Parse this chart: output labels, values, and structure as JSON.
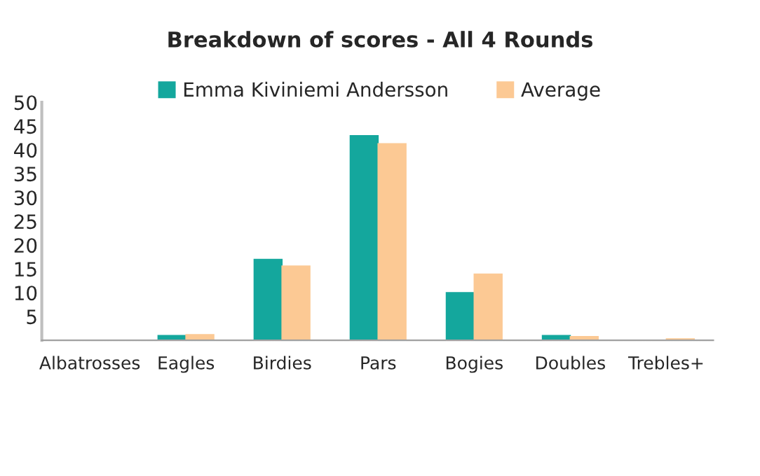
{
  "chart_data": {
    "type": "bar",
    "title": "Breakdown of scores - All 4 Rounds",
    "categories": [
      "Albatrosses",
      "Eagles",
      "Birdies",
      "Pars",
      "Bogies",
      "Doubles",
      "Trebles+"
    ],
    "series": [
      {
        "name": "Emma Kiviniemi Andersson",
        "color": "#14a79d",
        "values": [
          0,
          1,
          17,
          43,
          10,
          1,
          0
        ]
      },
      {
        "name": "Average",
        "color": "#fcc994",
        "values": [
          0,
          1.2,
          15.6,
          41.3,
          13.9,
          0.8,
          0.3
        ]
      }
    ],
    "ylim": [
      0,
      50
    ],
    "yticks": [
      5,
      10,
      15,
      20,
      25,
      30,
      35,
      40,
      45,
      50
    ],
    "grid": false,
    "legend": "top"
  }
}
